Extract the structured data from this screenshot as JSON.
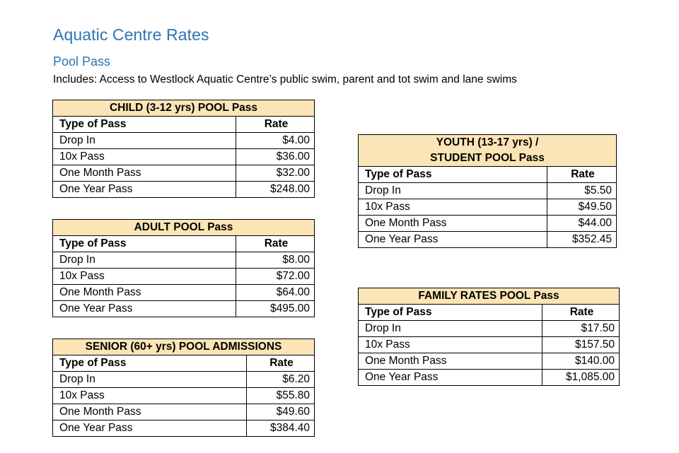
{
  "title": "Aquatic Centre Rates",
  "subtitle": "Pool Pass",
  "description": "Includes: Access to Westlock Aquatic Centre’s public swim, parent and tot swim and lane swims",
  "column_headers": {
    "type": "Type of Pass",
    "rate": "Rate"
  },
  "tables": {
    "child": {
      "caption": "CHILD (3-12 yrs) POOL Pass",
      "rows": [
        {
          "type": "Drop In",
          "rate": "$4.00"
        },
        {
          "type": "10x Pass",
          "rate": "$36.00"
        },
        {
          "type": "One Month Pass",
          "rate": "$32.00"
        },
        {
          "type": "One Year Pass",
          "rate": "$248.00"
        }
      ]
    },
    "adult": {
      "caption": "ADULT POOL Pass",
      "rows": [
        {
          "type": "Drop In",
          "rate": "$8.00"
        },
        {
          "type": "10x Pass",
          "rate": "$72.00"
        },
        {
          "type": "One Month Pass",
          "rate": "$64.00"
        },
        {
          "type": "One Year Pass",
          "rate": "$495.00"
        }
      ]
    },
    "senior": {
      "caption": "SENIOR (60+ yrs) POOL ADMISSIONS",
      "rows": [
        {
          "type": "Drop In",
          "rate": "$6.20"
        },
        {
          "type": "10x Pass",
          "rate": "$55.80"
        },
        {
          "type": "One Month Pass",
          "rate": "$49.60"
        },
        {
          "type": "One Year Pass",
          "rate": "$384.40"
        }
      ]
    },
    "youth": {
      "caption_line1": "YOUTH (13-17 yrs) /",
      "caption_line2": "STUDENT POOL Pass",
      "rows": [
        {
          "type": "Drop In",
          "rate": "$5.50"
        },
        {
          "type": "10x Pass",
          "rate": "$49.50"
        },
        {
          "type": "One Month Pass",
          "rate": "$44.00"
        },
        {
          "type": "One Year Pass",
          "rate": "$352.45"
        }
      ]
    },
    "family": {
      "caption": "FAMILY RATES POOL Pass",
      "rows": [
        {
          "type": "Drop In",
          "rate": "$17.50"
        },
        {
          "type": "10x Pass",
          "rate": "$157.50"
        },
        {
          "type": "One Month Pass",
          "rate": "$140.00"
        },
        {
          "type": "One Year Pass",
          "rate": "$1,085.00"
        }
      ]
    }
  },
  "colors": {
    "heading": "#2e74b5",
    "caption_fill": "#fbe5b6"
  }
}
